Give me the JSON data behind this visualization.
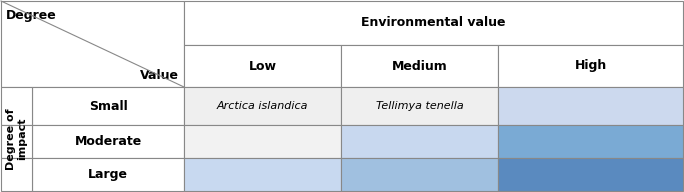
{
  "title_env": "Environmental value",
  "col_headers": [
    "Low",
    "Medium",
    "High"
  ],
  "row_headers": [
    "Small",
    "Moderate",
    "Large"
  ],
  "row_label": "Degree of\nimpact",
  "corner_label_left": "Degree",
  "corner_label_right": "Value",
  "cell_colors": [
    [
      "#efefef",
      "#efefef",
      "#ccd9ee"
    ],
    [
      "#f2f2f2",
      "#c8d8ef",
      "#7aaard4"
    ],
    [
      "#c8d9f0",
      "#a0c0e0",
      "#5a8abf"
    ]
  ],
  "cell_texts": [
    [
      "Arctica islandica",
      "Tellimya tenella",
      ""
    ],
    [
      "",
      "",
      ""
    ],
    [
      "",
      "",
      ""
    ]
  ],
  "border_color": "#888888",
  "bg_color": "#ffffff",
  "font_size_title": 9,
  "font_size_header": 9,
  "font_size_cell": 8,
  "font_size_corner": 9,
  "font_size_rowlabel": 8
}
